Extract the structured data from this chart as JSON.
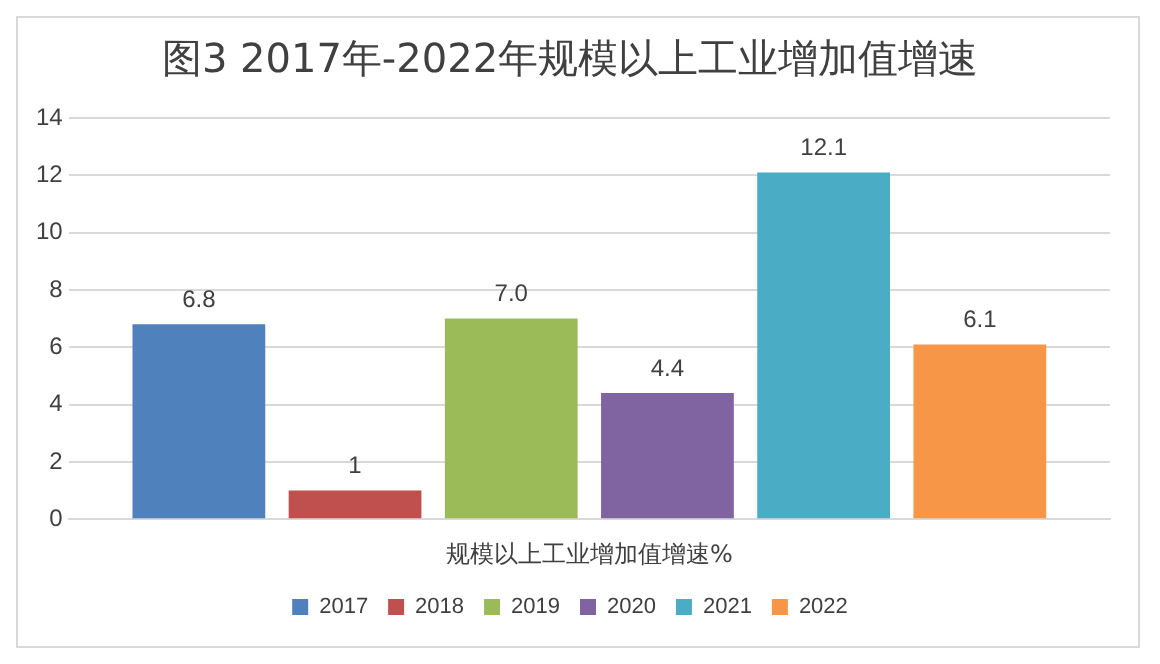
{
  "chart_data": {
    "type": "bar",
    "title": "图3 2017年-2022年规模以上工业增加值增速",
    "categories": [
      "规模以上工业增加值增速%"
    ],
    "series": [
      {
        "name": "2017",
        "color": "#4f81bd",
        "values": [
          6.8
        ],
        "value_labels": [
          "6.8"
        ]
      },
      {
        "name": "2018",
        "color": "#c0504d",
        "values": [
          1
        ],
        "value_labels": [
          "1"
        ]
      },
      {
        "name": "2019",
        "color": "#9bbb59",
        "values": [
          7.0
        ],
        "value_labels": [
          "7.0"
        ]
      },
      {
        "name": "2020",
        "color": "#8064a2",
        "values": [
          4.4
        ],
        "value_labels": [
          "4.4"
        ]
      },
      {
        "name": "2021",
        "color": "#4bacc6",
        "values": [
          12.1
        ],
        "value_labels": [
          "12.1"
        ]
      },
      {
        "name": "2022",
        "color": "#f79646",
        "values": [
          6.1
        ],
        "value_labels": [
          "6.1"
        ]
      }
    ],
    "ylim": [
      0,
      14
    ],
    "yticks": [
      0,
      2,
      4,
      6,
      8,
      10,
      12,
      14
    ],
    "grid": "y",
    "legend": "bottom"
  }
}
